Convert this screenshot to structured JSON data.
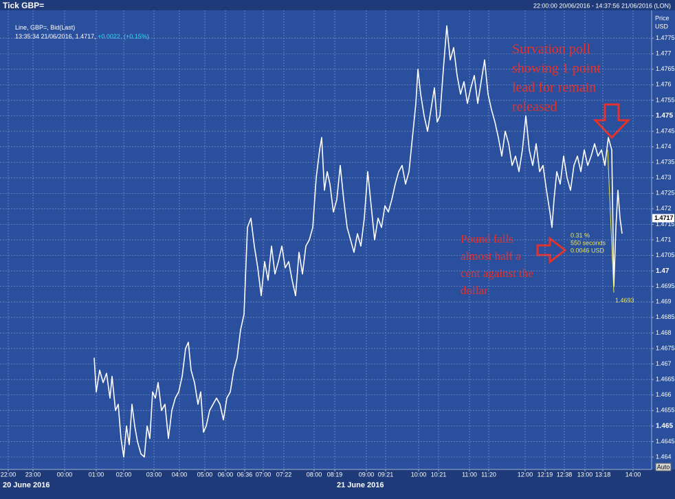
{
  "chart_data": {
    "type": "line",
    "title": "Tick GBP=",
    "period": "22:00:00 20/06/2016 - 14:37:56 21/06/2016 (LON)",
    "y_axis_label": "Price",
    "y_axis_unit": "USD",
    "legend_line": "Line, GBP=, Bid(Last)",
    "legend_time": "13:35:34 21/06/2016,",
    "legend_last": "1.4717,",
    "legend_change": "+0.0022,",
    "legend_pct": "(+0.15%)",
    "last_price": 1.4717,
    "dates": [
      "20 June 2016",
      "21 June 2016"
    ],
    "auto_label": "Auto",
    "x": [
      137,
      140,
      145,
      150,
      155,
      160,
      163,
      168,
      172,
      176,
      180,
      184,
      188,
      192,
      196,
      200,
      205,
      210,
      214,
      218,
      222,
      226,
      230,
      235,
      240,
      245,
      250,
      255,
      260,
      265,
      270,
      274,
      278,
      283,
      288,
      292,
      296,
      300,
      305,
      310,
      315,
      320,
      325,
      330,
      335,
      340,
      345,
      350,
      355,
      360,
      365,
      370,
      375,
      380,
      385,
      390,
      395,
      400,
      405,
      410,
      415,
      420,
      425,
      430,
      435,
      440,
      445,
      450,
      455,
      460,
      465,
      468,
      472,
      476,
      480,
      485,
      490,
      495,
      500,
      505,
      510,
      515,
      520,
      525,
      530,
      535,
      540,
      545,
      550,
      555,
      560,
      565,
      570,
      575,
      580,
      585,
      590,
      595,
      600,
      605,
      608,
      612,
      617,
      622,
      627,
      632,
      636,
      640,
      645,
      650,
      655,
      660,
      665,
      670,
      675,
      680,
      685,
      690,
      695,
      700,
      705,
      710,
      715,
      720,
      725,
      730,
      735,
      740,
      745,
      750,
      755,
      760,
      765,
      770,
      775,
      780,
      785,
      790,
      795,
      800,
      803,
      806,
      810,
      815,
      820,
      825,
      830,
      835,
      840,
      845,
      850,
      855,
      860,
      865,
      870,
      875,
      880,
      885,
      890,
      893,
      896,
      899,
      902,
      905
    ],
    "series": [
      {
        "name": "GBP=",
        "color": "#ffffff",
        "values": [
          1.4672,
          1.4661,
          1.4668,
          1.4664,
          1.4667,
          1.4659,
          1.4666,
          1.4655,
          1.4657,
          1.4646,
          1.464,
          1.465,
          1.4644,
          1.4657,
          1.465,
          1.4645,
          1.4641,
          1.464,
          1.465,
          1.4646,
          1.4661,
          1.4659,
          1.4664,
          1.4655,
          1.4657,
          1.4646,
          1.4655,
          1.4659,
          1.4661,
          1.4666,
          1.4675,
          1.4677,
          1.4668,
          1.4664,
          1.4657,
          1.4661,
          1.4648,
          1.465,
          1.4655,
          1.4657,
          1.4659,
          1.4657,
          1.4652,
          1.4659,
          1.4661,
          1.4668,
          1.4672,
          1.4681,
          1.4686,
          1.4714,
          1.4717,
          1.4708,
          1.4701,
          1.4692,
          1.4703,
          1.4697,
          1.4708,
          1.4699,
          1.4703,
          1.4708,
          1.4701,
          1.4703,
          1.4697,
          1.4692,
          1.4706,
          1.4699,
          1.4708,
          1.471,
          1.4714,
          1.473,
          1.4739,
          1.4743,
          1.4726,
          1.4732,
          1.4728,
          1.4719,
          1.4723,
          1.4734,
          1.4723,
          1.4714,
          1.471,
          1.4706,
          1.4712,
          1.4708,
          1.4717,
          1.4732,
          1.4721,
          1.471,
          1.4717,
          1.4714,
          1.4721,
          1.4719,
          1.4723,
          1.4728,
          1.4732,
          1.4734,
          1.4728,
          1.4732,
          1.4743,
          1.4754,
          1.4765,
          1.4757,
          1.475,
          1.4745,
          1.4752,
          1.4759,
          1.4748,
          1.475,
          1.4765,
          1.4779,
          1.4768,
          1.4772,
          1.4763,
          1.4757,
          1.4761,
          1.4754,
          1.4759,
          1.4763,
          1.4754,
          1.4761,
          1.4768,
          1.4757,
          1.4752,
          1.4748,
          1.4743,
          1.4737,
          1.4745,
          1.4741,
          1.4734,
          1.4737,
          1.4732,
          1.4739,
          1.475,
          1.4739,
          1.4734,
          1.4741,
          1.4732,
          1.4734,
          1.4726,
          1.4719,
          1.4714,
          1.4723,
          1.4732,
          1.4728,
          1.4737,
          1.473,
          1.4726,
          1.4734,
          1.4737,
          1.4732,
          1.4739,
          1.4734,
          1.4737,
          1.4741,
          1.4737,
          1.4739,
          1.4734,
          1.4743,
          1.4739,
          1.4695,
          1.4714,
          1.4726,
          1.4717,
          1.4712
        ]
      }
    ],
    "xlim": [
      0,
      948
    ],
    "ylim": [
      1.4636,
      1.4784
    ],
    "xticks": [
      {
        "value": 12,
        "label": "22:00"
      },
      {
        "value": 48,
        "label": "23:00"
      },
      {
        "value": 94,
        "label": "00:00"
      },
      {
        "value": 140,
        "label": "01:00"
      },
      {
        "value": 180,
        "label": "02:00"
      },
      {
        "value": 224,
        "label": "03:00"
      },
      {
        "value": 261,
        "label": "04:00"
      },
      {
        "value": 298,
        "label": "05:00"
      },
      {
        "value": 328,
        "label": "06:00"
      },
      {
        "value": 356,
        "label": "06:36"
      },
      {
        "value": 383,
        "label": "07:00"
      },
      {
        "value": 413,
        "label": "07:22"
      },
      {
        "value": 457,
        "label": "08:00"
      },
      {
        "value": 487,
        "label": "08:19"
      },
      {
        "value": 533,
        "label": "09:00"
      },
      {
        "value": 561,
        "label": "09:21"
      },
      {
        "value": 609,
        "label": "10:00"
      },
      {
        "value": 638,
        "label": "10:21"
      },
      {
        "value": 683,
        "label": "11:00"
      },
      {
        "value": 711,
        "label": "11:20"
      },
      {
        "value": 764,
        "label": "12:00"
      },
      {
        "value": 793,
        "label": "12:19"
      },
      {
        "value": 821,
        "label": "12:38"
      },
      {
        "value": 851,
        "label": "13:00"
      },
      {
        "value": 877,
        "label": "13:18"
      },
      {
        "value": 921,
        "label": "14:00"
      }
    ],
    "yticks": [
      1.464,
      1.4645,
      1.465,
      1.4655,
      1.466,
      1.4665,
      1.467,
      1.4675,
      1.468,
      1.4685,
      1.469,
      1.4695,
      1.47,
      1.4705,
      1.471,
      1.4715,
      1.472,
      1.4725,
      1.473,
      1.4735,
      1.474,
      1.4745,
      1.475,
      1.4755,
      1.476,
      1.4765,
      1.477,
      1.4775
    ],
    "grid": true,
    "measure": {
      "from_x": 884,
      "from": 1.4739,
      "to_x": 893,
      "to": 1.4693,
      "color": "#e8e85a",
      "pct": "0.31 %",
      "seconds": "550 seconds",
      "usd": "0.0046 USD"
    },
    "annotations": [
      {
        "lines": [
          "Survation poll",
          "showing 1 point",
          "lead for remain",
          "released"
        ],
        "color": "#e4322b"
      },
      {
        "lines": [
          "Pound falls",
          "almost half a",
          "cent against the",
          "dollar"
        ],
        "color": "#e4322b"
      }
    ]
  }
}
